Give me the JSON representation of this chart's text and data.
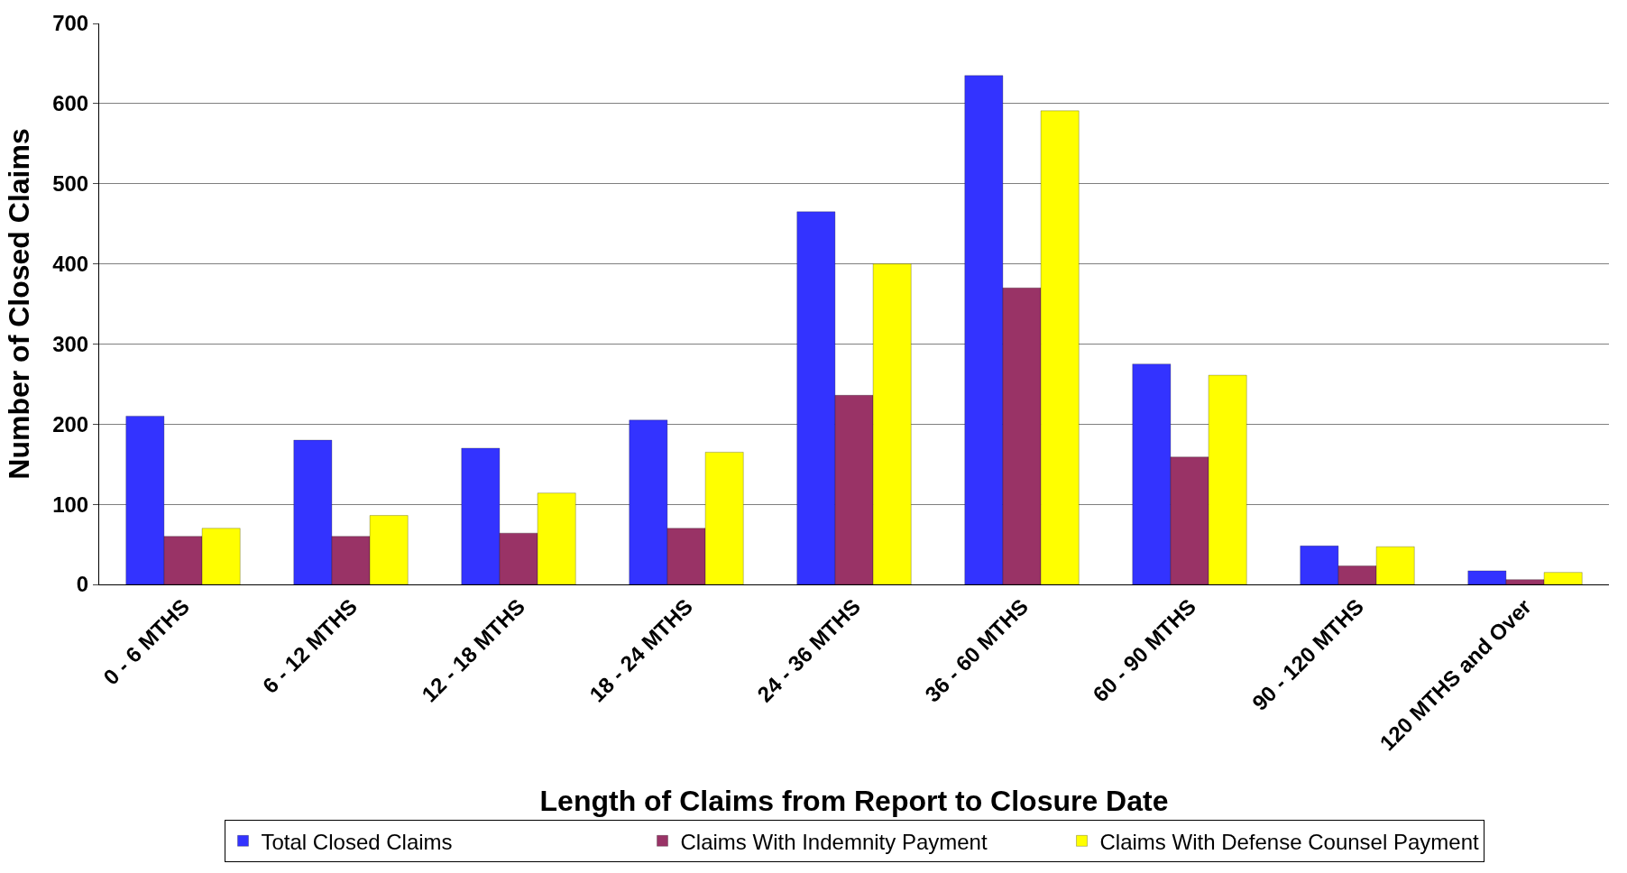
{
  "chart_data": {
    "type": "bar",
    "xlabel": "Length of Claims from Report to Closure Date",
    "ylabel": "Number of Closed Claims",
    "categories": [
      "0 - 6 MTHS",
      "6 - 12 MTHS",
      "12 - 18 MTHS",
      "18 - 24 MTHS",
      "24 - 36 MTHS",
      "36 - 60 MTHS",
      "60 - 90 MTHS",
      "90 - 120 MTHS",
      "120 MTHS and Over"
    ],
    "series": [
      {
        "name": "Total Closed Claims",
        "color": "#3333ff",
        "values": [
          210,
          180,
          170,
          205,
          465,
          635,
          275,
          48,
          17
        ]
      },
      {
        "name": "Claims With Indemnity Payment",
        "color": "#993366",
        "values": [
          60,
          60,
          64,
          70,
          236,
          370,
          159,
          23,
          6
        ]
      },
      {
        "name": "Claims With Defense Counsel Payment",
        "color": "#ffff00",
        "values": [
          70,
          86,
          114,
          165,
          400,
          591,
          261,
          47,
          15
        ]
      }
    ],
    "ylim": [
      0,
      700
    ],
    "yticks": [
      0,
      100,
      200,
      300,
      400,
      500,
      600,
      700
    ],
    "grid": "y",
    "legend": "bottom"
  }
}
